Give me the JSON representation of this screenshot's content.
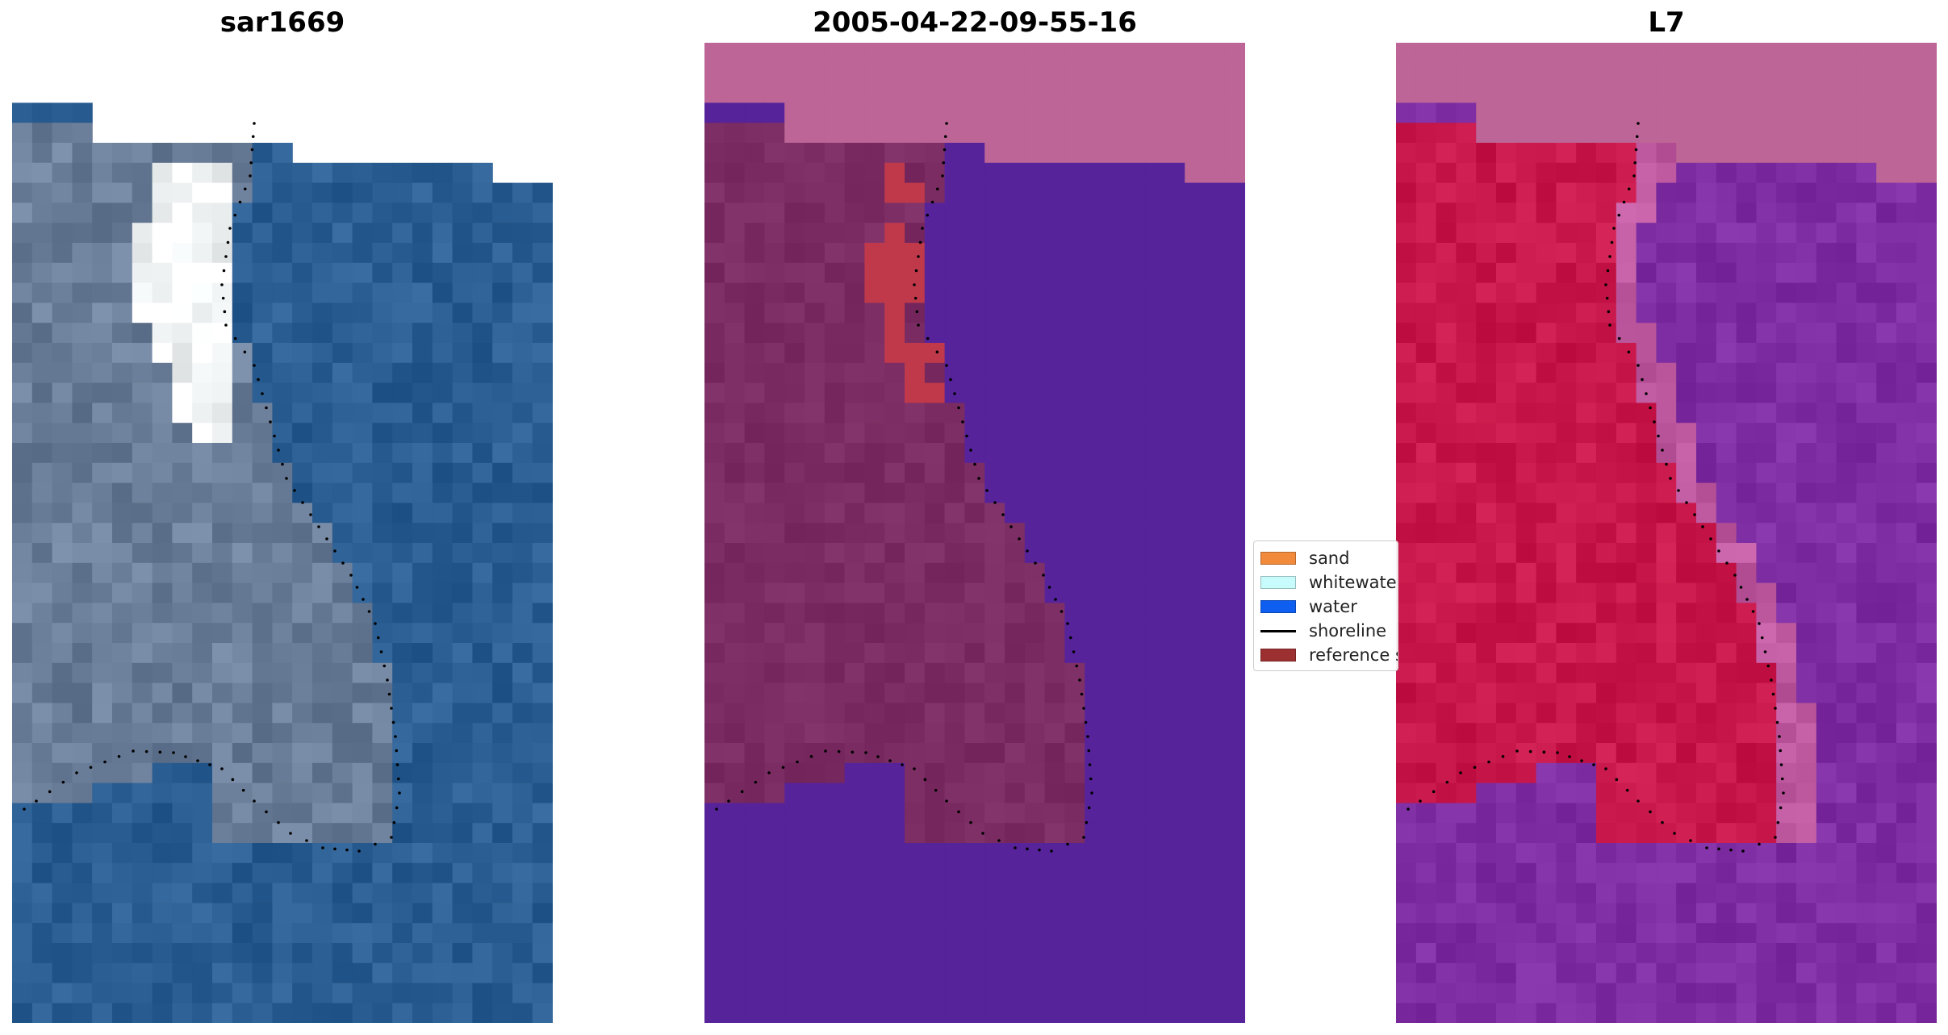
{
  "panels": [
    {
      "title": "sar1669",
      "description": "satellite RGB image with reference shoreline"
    },
    {
      "title": "2005-04-22-09-55-16",
      "description": "classified image"
    },
    {
      "title": "L7",
      "description": "water index image"
    }
  ],
  "legend": {
    "items": [
      {
        "label": "sand",
        "color": "#f28a3c",
        "kind": "patch"
      },
      {
        "label": "whitewater",
        "color": "#c8fbfb",
        "kind": "patch"
      },
      {
        "label": "water",
        "color": "#0e5ef0",
        "kind": "patch"
      },
      {
        "label": "shoreline",
        "color": "#000000",
        "kind": "line"
      },
      {
        "label": "reference shoreline",
        "color": "#9c2f30",
        "kind": "patch"
      }
    ]
  },
  "colors": {
    "nodata": "#ffffff",
    "cloud_mask": "#bd6596",
    "rgb_land": "#6b7e99",
    "rgb_water": "#2b5e92",
    "rgb_whitewater": "#f4f7f8",
    "class_land": "#7b2d63",
    "class_water": "#56239b",
    "class_sand": "#c0394a",
    "index_land": "#c8174a",
    "index_water": "#7e2ea2",
    "shoreline_dots": "#000000"
  }
}
